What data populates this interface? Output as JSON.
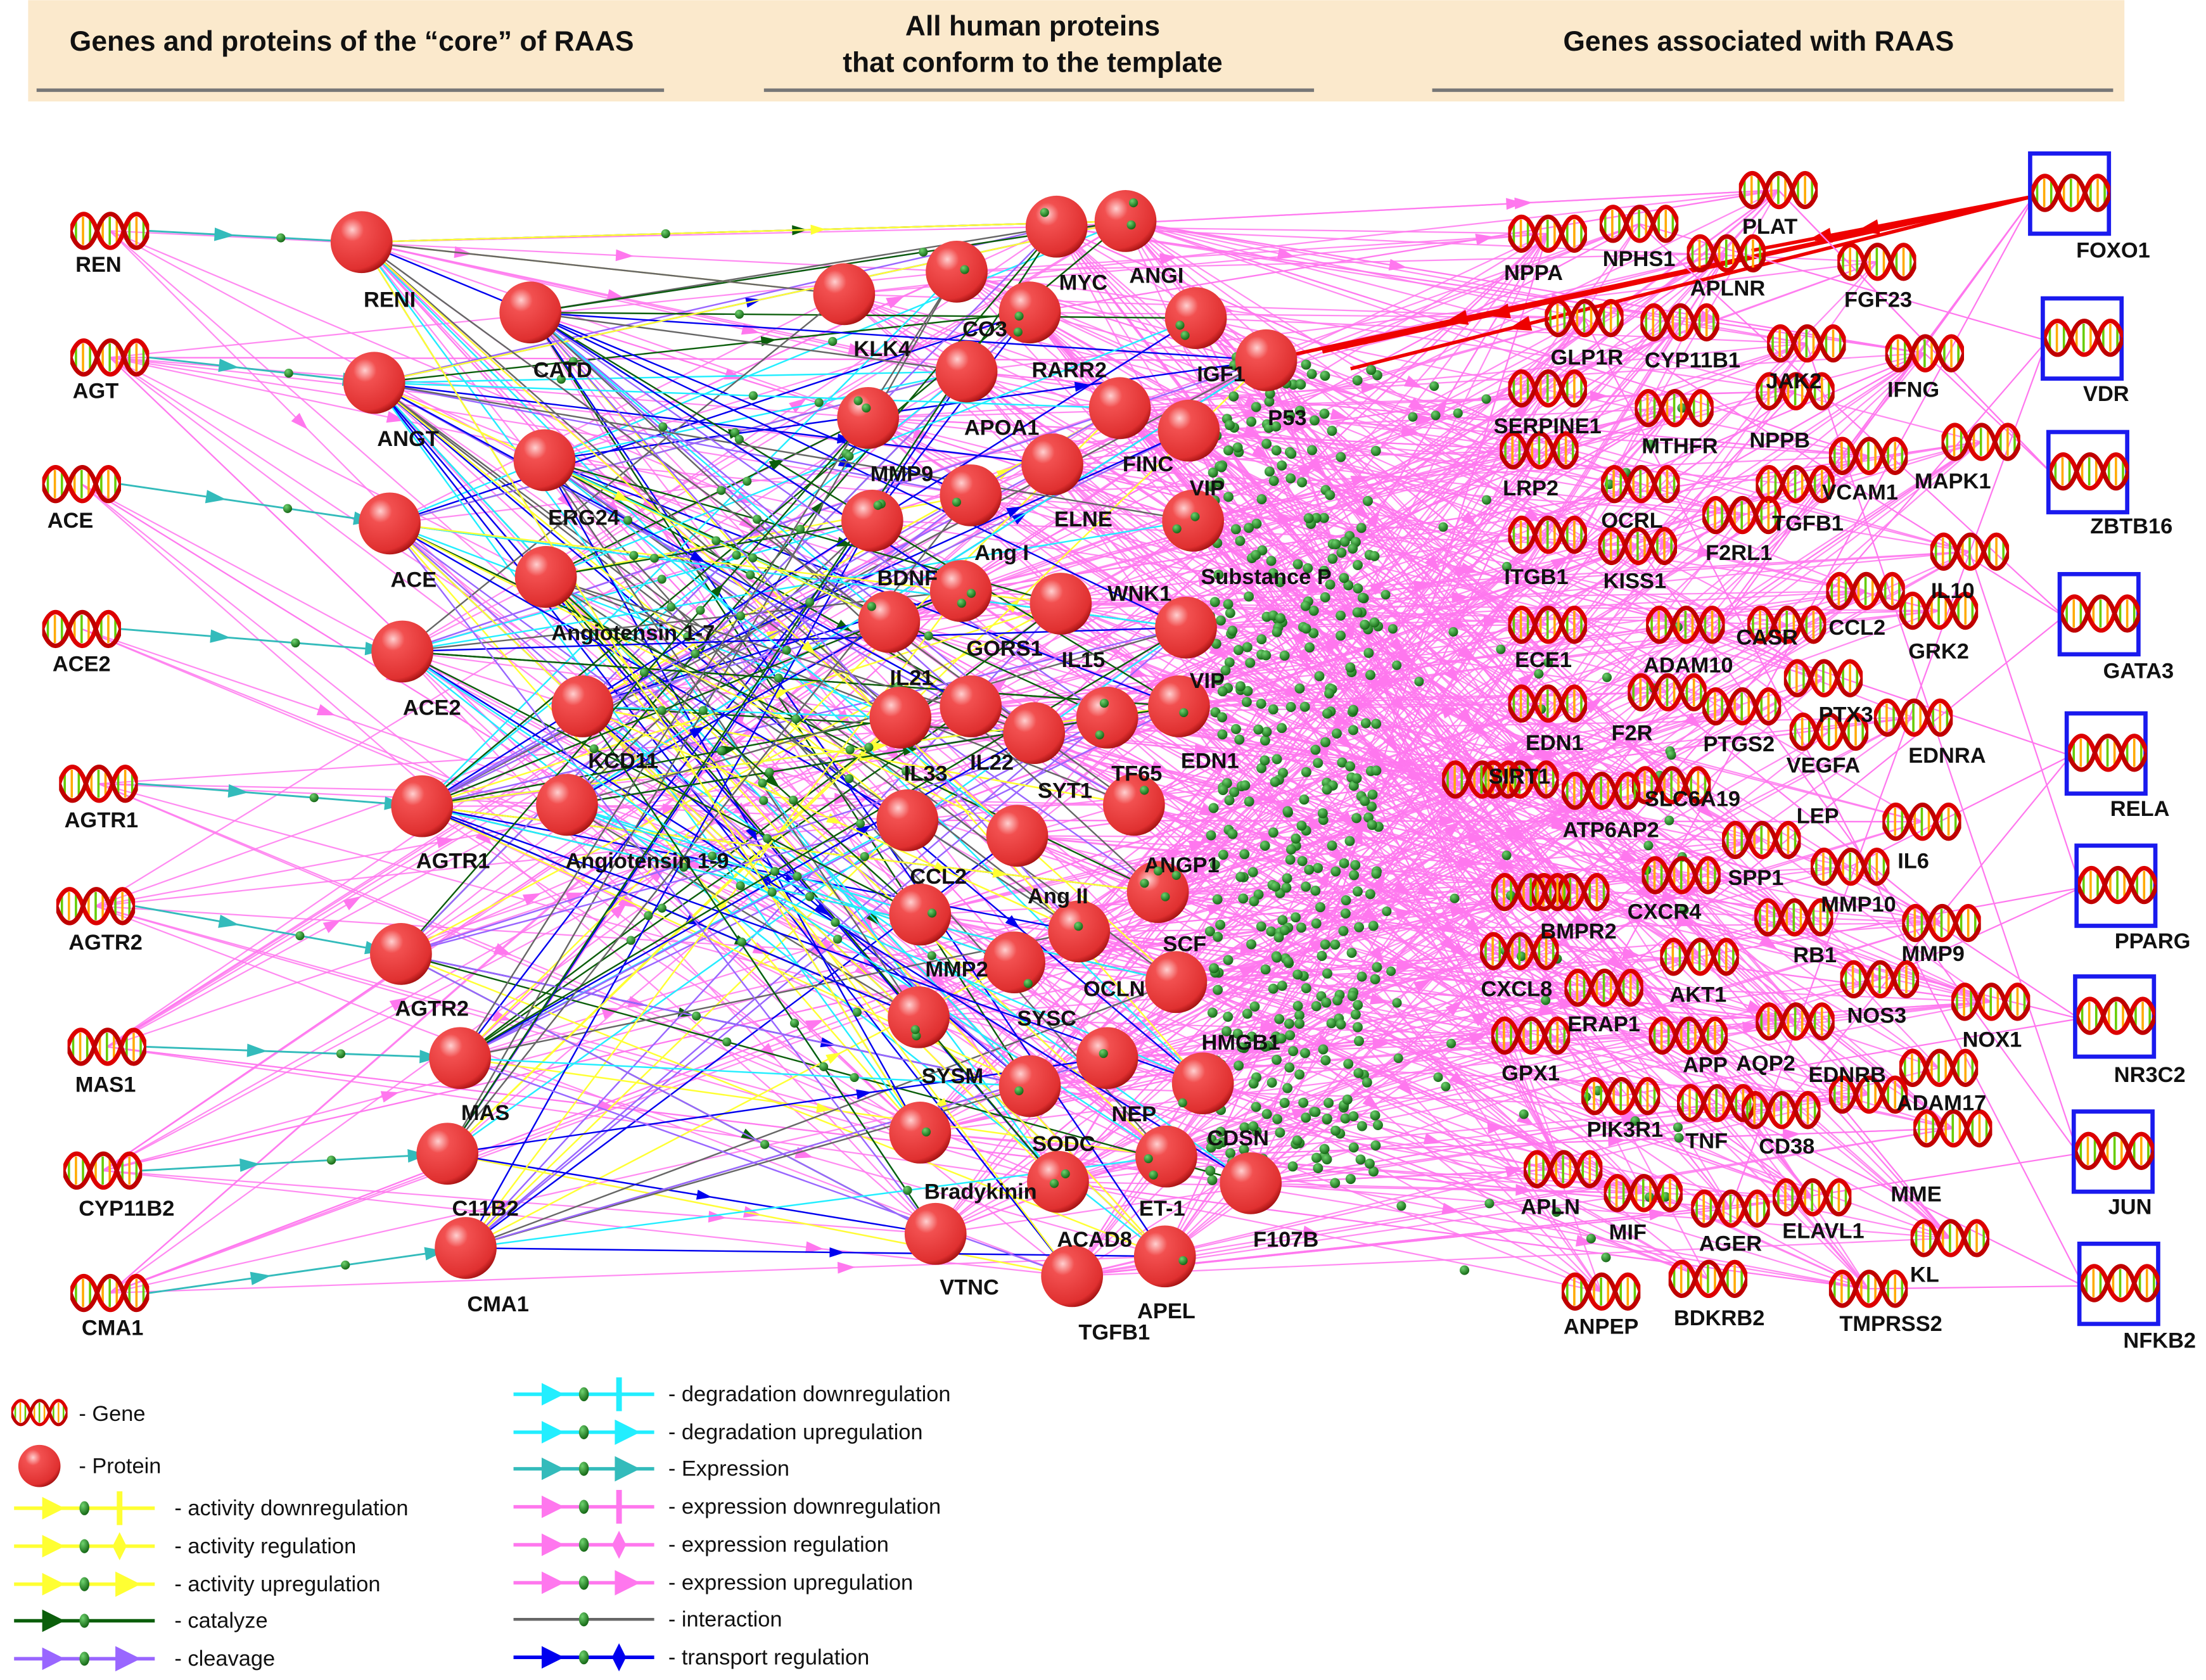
{
  "header": {
    "left_title": "Genes and proteins of the “core” of RAAS",
    "middle_title_line1": "All human proteins",
    "middle_title_line2": "that conform to the template",
    "right_title": "Genes associated with RAAS"
  },
  "colors": {
    "header_bg": "#fbe9cc",
    "activity": "#ffff33",
    "catalyze": "#0b5e0b",
    "cleavage": "#9966ff",
    "degradation": "#22eeff",
    "expression": "#33bbbb",
    "expression_regulation": "#ff77ee",
    "interaction": "#666666",
    "transport": "#0000ee",
    "highlight_box": "#1a1aee",
    "highlight_edge": "#ee0000"
  },
  "core_genes": [
    "REN",
    "AGT",
    "ACE",
    "ACE2",
    "AGTR1",
    "AGTR2",
    "MAS1",
    "CYP11B2",
    "CMA1"
  ],
  "core_proteins": [
    "RENI",
    "CATD",
    "ANGT",
    "ERG24",
    "ACE",
    "Angiotensin 1-7",
    "ACE2",
    "KCD11",
    "AGTR1",
    "Angiotensin 1-9",
    "AGTR2",
    "MAS",
    "C11B2",
    "CMA1"
  ],
  "template_proteins": [
    "MYC",
    "ANGI",
    "KLK4",
    "CO3",
    "RARR2",
    "IGF1",
    "P53",
    "APOA1",
    "FINC",
    "MMP9",
    "VIP",
    "ELNE",
    "Ang I",
    "BDNF",
    "Substance P",
    "WNK1",
    "GORS1",
    "IL21",
    "IL15",
    "VIP",
    "IL22",
    "IL33",
    "SYT1",
    "TF65",
    "EDN1",
    "CCL2",
    "Ang II",
    "ANGP1",
    "MMP2",
    "SCF",
    "OCLN",
    "SYSC",
    "HMGB1",
    "SYSM",
    "NEP",
    "SODC",
    "CDSN",
    "Bradykinin",
    "ET-1",
    "F107B",
    "ACAD8",
    "VTNC",
    "APEL",
    "TGFB1"
  ],
  "associated_genes": [
    "NPPA",
    "NPHS1",
    "PLAT",
    "APLNR",
    "FGF23",
    "GLP1R",
    "CYP11B1",
    "JAK2",
    "IFNG",
    "SERPINE1",
    "MTHFR",
    "NPPB",
    "VCAM1",
    "MAPK1",
    "LRP2",
    "OCRL",
    "TGFB1",
    "F2RL1",
    "ITGB1",
    "KISS1",
    "IL10",
    "CASR",
    "CCL2",
    "GRK2",
    "ECE1",
    "ADAM10",
    "PTX3",
    "EDN1",
    "F2R",
    "PTGS2",
    "VEGFA",
    "EDNRA",
    "SIRT1",
    "SLC6A19",
    "ATP6AP2",
    "LEP",
    "IL6",
    "SPP1",
    "MMP10",
    "CXCR4",
    "BMPR2",
    "RB1",
    "MMP9",
    "CXCL8",
    "AKT1",
    "ERAP1",
    "NOS3",
    "NOX1",
    "APP",
    "AQP2",
    "GPX1",
    "EDNRB",
    "ADAM17",
    "PIK3R1",
    "TNF",
    "CD38",
    "MME",
    "APLN",
    "MIF",
    "AGER",
    "ELAVL1",
    "KL",
    "ANPEP",
    "BDKRB2",
    "TMPRSS2"
  ],
  "highlighted_genes": [
    "FOXO1",
    "VDR",
    "ZBTB16",
    "GATA3",
    "RELA",
    "PPARG",
    "NR3C2",
    "JUN",
    "NFKB2"
  ],
  "legend": {
    "gene": "- Gene",
    "protein": "- Protein",
    "items": [
      {
        "label": "- activity downregulation",
        "color": "activity",
        "end": "bar"
      },
      {
        "label": "- activity regulation",
        "color": "activity",
        "end": "diamond"
      },
      {
        "label": "- activity upregulation",
        "color": "activity",
        "end": "arrow"
      },
      {
        "label": "- catalyze",
        "color": "catalyze",
        "end": "none"
      },
      {
        "label": "- cleavage",
        "color": "cleavage",
        "end": "arrow"
      },
      {
        "label": "- degradation downregulation",
        "color": "degradation",
        "end": "bar"
      },
      {
        "label": "- degradation upregulation",
        "color": "degradation",
        "end": "arrow"
      },
      {
        "label": "- Expression",
        "color": "expression",
        "end": "arrow"
      },
      {
        "label": "- expression downregulation",
        "color": "expression_regulation",
        "end": "bar"
      },
      {
        "label": "- expression regulation",
        "color": "expression_regulation",
        "end": "diamond"
      },
      {
        "label": "- expression upregulation",
        "color": "expression_regulation",
        "end": "arrow"
      },
      {
        "label": "- interaction",
        "color": "interaction",
        "end": "none"
      },
      {
        "label": "- transport regulation",
        "color": "transport",
        "end": "diamond"
      }
    ]
  }
}
